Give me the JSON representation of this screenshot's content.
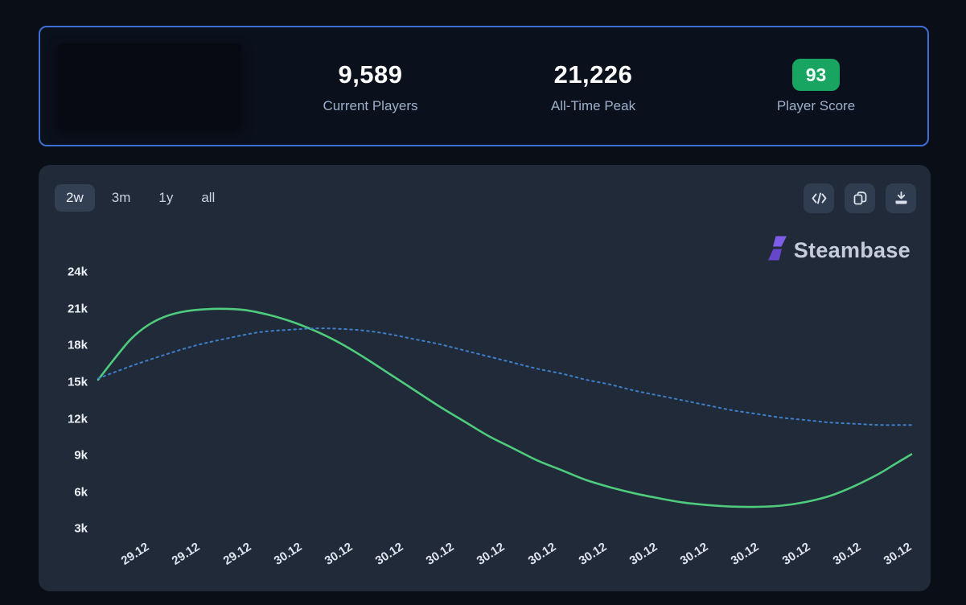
{
  "stats_card": {
    "stats": [
      {
        "value": "9,589",
        "label": "Current Players"
      },
      {
        "value": "21,226",
        "label": "All-Time Peak"
      },
      {
        "value": "93",
        "label": "Player Score"
      }
    ],
    "badge_color": "#17a561",
    "border_color": "#3d6ed6"
  },
  "toolbar": {
    "ranges": [
      {
        "label": "2w",
        "selected": true
      },
      {
        "label": "3m",
        "selected": false
      },
      {
        "label": "1y",
        "selected": false
      },
      {
        "label": "all",
        "selected": false
      }
    ],
    "actions": [
      "embed-code",
      "copy",
      "download"
    ]
  },
  "brand": {
    "name": "Steambase",
    "logo_color": "#7155d9"
  },
  "chart_data": {
    "type": "line",
    "title": "",
    "xlabel": "",
    "ylabel": "",
    "grid": false,
    "legend": "none",
    "y_ticks": [
      {
        "label": "24k",
        "value": 24000
      },
      {
        "label": "21k",
        "value": 21000
      },
      {
        "label": "18k",
        "value": 18000
      },
      {
        "label": "15k",
        "value": 15000
      },
      {
        "label": "12k",
        "value": 12000
      },
      {
        "label": "9k",
        "value": 9000
      },
      {
        "label": "6k",
        "value": 6000
      },
      {
        "label": "3k",
        "value": 3000
      }
    ],
    "ylim": [
      1500,
      25500
    ],
    "x_tick_labels": [
      "29.12",
      "29.12",
      "29.12",
      "30.12",
      "30.12",
      "30.12",
      "30.12",
      "30.12",
      "30.12",
      "30.12",
      "30.12",
      "30.12",
      "30.12",
      "30.12",
      "30.12",
      "30.12"
    ],
    "series": [
      {
        "name": "players-green-line",
        "color": "#4ecb7d",
        "style": "solid",
        "points": [
          [
            0.0,
            15200
          ],
          [
            0.02,
            16900
          ],
          [
            0.04,
            18500
          ],
          [
            0.06,
            19600
          ],
          [
            0.08,
            20300
          ],
          [
            0.1,
            20700
          ],
          [
            0.12,
            20900
          ],
          [
            0.15,
            21000
          ],
          [
            0.18,
            20900
          ],
          [
            0.21,
            20500
          ],
          [
            0.24,
            19900
          ],
          [
            0.27,
            19100
          ],
          [
            0.3,
            18100
          ],
          [
            0.33,
            16900
          ],
          [
            0.36,
            15600
          ],
          [
            0.39,
            14300
          ],
          [
            0.42,
            13000
          ],
          [
            0.45,
            11800
          ],
          [
            0.48,
            10600
          ],
          [
            0.51,
            9600
          ],
          [
            0.54,
            8600
          ],
          [
            0.57,
            7800
          ],
          [
            0.6,
            7000
          ],
          [
            0.63,
            6400
          ],
          [
            0.66,
            5900
          ],
          [
            0.69,
            5500
          ],
          [
            0.72,
            5150
          ],
          [
            0.75,
            4950
          ],
          [
            0.78,
            4820
          ],
          [
            0.81,
            4800
          ],
          [
            0.84,
            4900
          ],
          [
            0.87,
            5200
          ],
          [
            0.9,
            5700
          ],
          [
            0.93,
            6500
          ],
          [
            0.96,
            7500
          ],
          [
            0.98,
            8300
          ],
          [
            1.0,
            9100
          ]
        ]
      },
      {
        "name": "trend-blue-dotted-line",
        "color": "#3d7fc9",
        "style": "dotted",
        "points": [
          [
            0.0,
            15300
          ],
          [
            0.04,
            16300
          ],
          [
            0.08,
            17200
          ],
          [
            0.12,
            18000
          ],
          [
            0.16,
            18600
          ],
          [
            0.2,
            19100
          ],
          [
            0.24,
            19300
          ],
          [
            0.27,
            19400
          ],
          [
            0.3,
            19350
          ],
          [
            0.33,
            19200
          ],
          [
            0.36,
            18900
          ],
          [
            0.39,
            18500
          ],
          [
            0.42,
            18100
          ],
          [
            0.45,
            17600
          ],
          [
            0.48,
            17100
          ],
          [
            0.51,
            16600
          ],
          [
            0.54,
            16100
          ],
          [
            0.57,
            15700
          ],
          [
            0.6,
            15200
          ],
          [
            0.63,
            14800
          ],
          [
            0.66,
            14300
          ],
          [
            0.69,
            13900
          ],
          [
            0.72,
            13500
          ],
          [
            0.75,
            13100
          ],
          [
            0.78,
            12700
          ],
          [
            0.81,
            12400
          ],
          [
            0.84,
            12100
          ],
          [
            0.87,
            11900
          ],
          [
            0.9,
            11700
          ],
          [
            0.93,
            11600
          ],
          [
            0.96,
            11500
          ],
          [
            1.0,
            11500
          ]
        ]
      }
    ]
  }
}
